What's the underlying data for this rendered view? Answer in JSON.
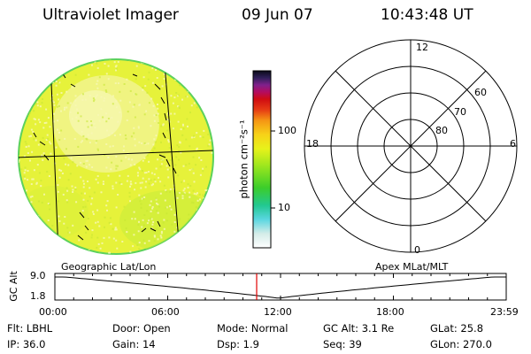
{
  "header": {
    "instrument": "Ultraviolet Imager",
    "date": "09 Jun 07",
    "time": "10:43:48 UT"
  },
  "colorbar": {
    "unit_label": "photon cm⁻²s⁻¹",
    "ticks": [
      "100",
      "10"
    ]
  },
  "polar_plot": {
    "mlt_labels": {
      "top": "12",
      "left": "18",
      "right": "6",
      "bottom": "0"
    },
    "lat_labels": [
      "60",
      "70",
      "80"
    ]
  },
  "orbit_panel": {
    "y_axis_label": "GC Alt",
    "y_ticks": [
      "9.0",
      "1.8"
    ],
    "left_caption": "Geographic Lat/Lon",
    "right_caption": "Apex MLat/MLT",
    "x_ticks": [
      "00:00",
      "06:00",
      "12:00",
      "18:00",
      "23:59"
    ],
    "current_time_hours": 10.73
  },
  "info": {
    "row1": {
      "filter": "Flt: LBHL",
      "door": "Door: Open",
      "mode": "Mode: Normal",
      "gc_alt": "GC Alt: 3.1 Re",
      "glat": "GLat:  25.8"
    },
    "row2": {
      "ip": "IP: 36.0",
      "gain": "Gain: 14",
      "dsp": "Dsp:    1.9",
      "seq": "Seq: 39",
      "glon": "GLon: 270.0"
    }
  },
  "colors": {
    "disk_fill": "#e6f23a",
    "disk_edge": "#5cd15c",
    "disk_bright": "#f6f7a8",
    "time_marker": "#e00000"
  }
}
